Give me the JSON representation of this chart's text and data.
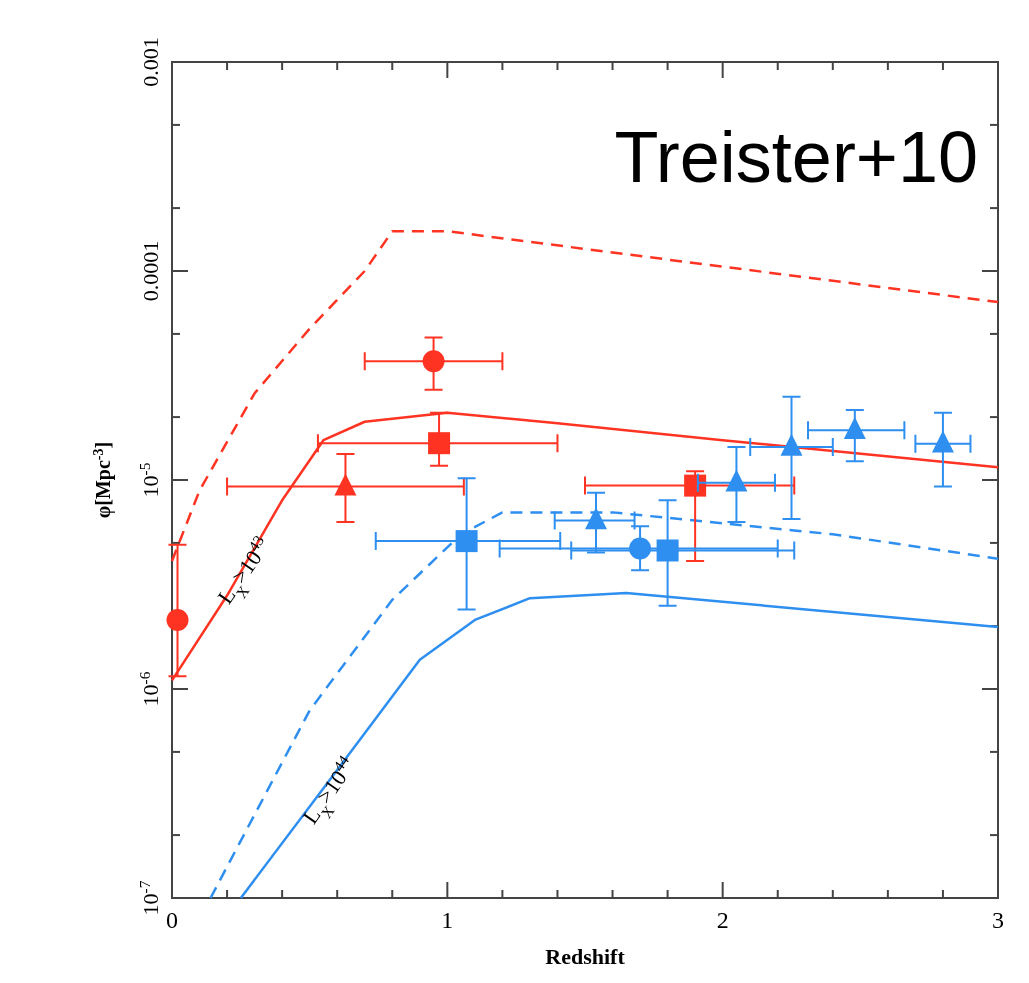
{
  "chart_data": {
    "type": "line",
    "xlabel": "Redshift",
    "ylabel": "φ[Mpc$^{-3}$]",
    "log": "y",
    "xlim": [
      0,
      3
    ],
    "ylim": [
      1e-07,
      0.001
    ],
    "xticks": [
      0,
      {
        "value": 0.2,
        "label": null
      },
      {
        "value": 0.4,
        "label": null
      },
      {
        "value": 0.6,
        "label": null
      },
      {
        "value": 0.8,
        "label": null
      },
      1,
      {
        "value": 1.2,
        "label": null
      },
      {
        "value": 1.4,
        "label": null
      },
      {
        "value": 1.6,
        "label": null
      },
      {
        "value": 1.8,
        "label": null
      },
      2,
      {
        "value": 2.2,
        "label": null
      },
      {
        "value": 2.4,
        "label": null
      },
      {
        "value": 2.6,
        "label": null
      },
      {
        "value": 2.8,
        "label": null
      },
      3
    ],
    "yticks": [
      {
        "value": 1e-07,
        "label": "10$^{-7}$"
      },
      {
        "value": 2e-07,
        "label": null
      },
      {
        "value": 5e-07,
        "label": null
      },
      {
        "value": 1e-06,
        "label": "10$^{-6}$"
      },
      {
        "value": 2e-06,
        "label": null
      },
      {
        "value": 5e-06,
        "label": null
      },
      {
        "value": 1e-05,
        "label": "10$^{-5}$"
      },
      {
        "value": 2e-05,
        "label": null
      },
      {
        "value": 5e-05,
        "label": null
      },
      {
        "value": 0.0001,
        "label": "0.0001"
      },
      {
        "value": 0.0002,
        "label": null
      },
      {
        "value": 0.0005,
        "label": null
      },
      {
        "value": 0.001,
        "label": "0.001"
      }
    ],
    "annotations": [
      "Treister+10",
      "L$_{X}$>10$^{43}$",
      "L$_{X}$>10$^{44}$"
    ],
    "series": [
      {
        "line_style": "dashed",
        "color": "#ff3322",
        "x": [
          0,
          0.1,
          0.3,
          0.5,
          0.7,
          0.8,
          1.0,
          3
        ],
        "values": [
          4.1e-06,
          8.9e-06,
          2.6e-05,
          5.3e-05,
          0.0001,
          0.000155,
          0.000155,
          7.1e-05
        ]
      },
      {
        "line_style": "solid",
        "color": "#ff3322",
        "x": [
          0,
          0.2,
          0.4,
          0.55,
          0.7,
          1.0,
          1.4,
          2,
          3
        ],
        "values": [
          1.1e-06,
          2.8e-06,
          8e-06,
          1.55e-05,
          1.9e-05,
          2.1e-05,
          1.87e-05,
          1.55e-05,
          1.15e-05
        ]
      },
      {
        "line_style": "dashed",
        "color": "#2e8ff0",
        "x": [
          0.14,
          0.5,
          0.8,
          1.05,
          1.2,
          1.6,
          2.4,
          3
        ],
        "values": [
          1e-07,
          7.9e-07,
          2.67e-06,
          5.5e-06,
          7e-06,
          7e-06,
          5.5e-06,
          4.2e-06
        ]
      },
      {
        "line_style": "solid",
        "color": "#2e8ff0",
        "x": [
          0.25,
          0.6,
          0.9,
          1.1,
          1.3,
          1.65,
          3
        ],
        "values": [
          1e-07,
          4.1e-07,
          1.38e-06,
          2.14e-06,
          2.72e-06,
          2.88e-06,
          1.98e-06
        ]
      },
      {
        "type": "scatter",
        "marker": "circle",
        "color": "#ff3322",
        "x": [
          0.02
        ],
        "values": [
          2.14e-06
        ],
        "errors": [
          [
            1.15e-06,
            4.9e-06
          ]
        ],
        "xerrors": [
          null
        ]
      },
      {
        "type": "scatter",
        "marker": "circle",
        "color": "#ff3322",
        "x": [
          0.95
        ],
        "values": [
          3.7e-05
        ],
        "errors": [
          [
            2.7e-05,
            4.8e-05
          ]
        ],
        "xerrors": [
          [
            0.7,
            1.2
          ]
        ]
      },
      {
        "type": "scatter",
        "marker": "square",
        "color": "#ff3322",
        "x": [
          0.97,
          1.9
        ],
        "values": [
          1.5e-05,
          9.4e-06
        ],
        "errors": [
          [
            1.17e-05,
            2.1e-05
          ],
          [
            4.1e-06,
            1.1e-05
          ]
        ],
        "xerrors": [
          [
            0.53,
            1.4
          ],
          [
            1.5,
            2.26
          ]
        ]
      },
      {
        "type": "scatter",
        "marker": "triangle",
        "color": "#ff3322",
        "x": [
          0.63
        ],
        "values": [
          9.3e-06
        ],
        "errors": [
          [
            6.3e-06,
            1.33e-05
          ]
        ],
        "xerrors": [
          [
            0.2,
            1.06
          ]
        ]
      },
      {
        "type": "scatter",
        "marker": "square",
        "color": "#2e8ff0",
        "x": [
          1.07,
          1.8
        ],
        "values": [
          5.1e-06,
          4.6e-06
        ],
        "errors": [
          [
            2.4e-06,
            1.02e-05
          ],
          [
            2.5e-06,
            8e-06
          ]
        ],
        "xerrors": [
          [
            0.74,
            1.41
          ],
          [
            1.45,
            2.26
          ]
        ]
      },
      {
        "type": "scatter",
        "marker": "circle",
        "color": "#2e8ff0",
        "x": [
          1.7
        ],
        "values": [
          4.7e-06
        ],
        "errors": [
          [
            3.7e-06,
            6e-06
          ]
        ],
        "xerrors": [
          [
            1.19,
            2.2
          ]
        ]
      },
      {
        "type": "scatter",
        "marker": "triangle",
        "color": "#2e8ff0",
        "x": [
          1.54,
          2.05,
          2.25,
          2.48,
          2.8
        ],
        "values": [
          6.4e-06,
          9.7e-06,
          1.44e-05,
          1.73e-05,
          1.49e-05
        ],
        "errors": [
          [
            4.5e-06,
            8.7e-06
          ],
          [
            6.3e-06,
            1.44e-05
          ],
          [
            6.5e-06,
            2.5e-05
          ],
          [
            1.23e-05,
            2.16e-05
          ],
          [
            9.3e-06,
            2.1e-05
          ]
        ],
        "xerrors": [
          [
            1.39,
            1.68
          ],
          [
            1.91,
            2.19
          ],
          [
            2.1,
            2.4
          ],
          [
            2.31,
            2.66
          ],
          [
            2.7,
            2.9
          ]
        ]
      }
    ]
  }
}
